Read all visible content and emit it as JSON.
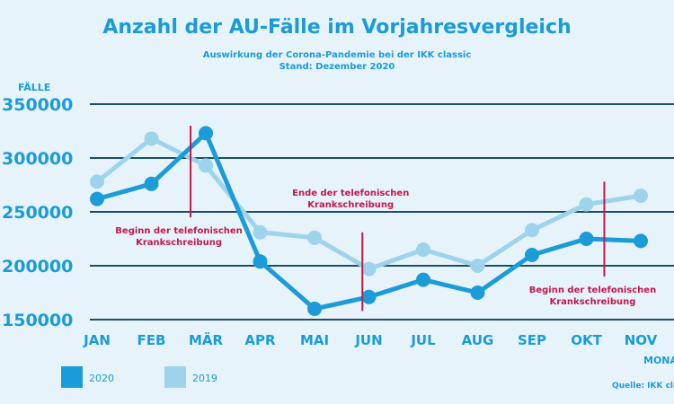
{
  "chart_data": {
    "type": "line",
    "title": "Anzahl der AU-Fälle im Vorjahresvergleich",
    "subtitle_line1": "Auswirkung der Corona-Pandemie bei der IKK classic",
    "subtitle_line2": "Stand: Dezember 2020",
    "ylabel": "FÄLLE",
    "xlabel": "MONAT",
    "source": "Quelle: IKK classic",
    "categories": [
      "JAN",
      "FEB",
      "MÄR",
      "APR",
      "MAI",
      "JUN",
      "JUL",
      "AUG",
      "SEP",
      "OKT",
      "NOV"
    ],
    "y_ticks": [
      350000,
      300000,
      250000,
      200000,
      150000
    ],
    "y_tick_labels": [
      "350000",
      "300000",
      "250000",
      "200000",
      "150000"
    ],
    "ylim": [
      150000,
      350000
    ],
    "grid": true,
    "legend_position": "bottom-left",
    "series": [
      {
        "name": "2019",
        "color": "#9dd4ec",
        "values": [
          278000,
          318000,
          293000,
          231000,
          226000,
          197000,
          215000,
          200000,
          233000,
          257000,
          265000
        ]
      },
      {
        "name": "2020",
        "color": "#1b9bd7",
        "values": [
          262000,
          276000,
          323000,
          204000,
          160000,
          171000,
          187000,
          175000,
          210000,
          225000,
          223000
        ]
      }
    ],
    "annotations": [
      {
        "month_index": 1.72,
        "line_from": 245000,
        "line_to": 330000,
        "text": [
          "Beginn der telefonischen",
          "Krankschreibung"
        ],
        "text_anchor_value": 230000
      },
      {
        "month_index": 4.88,
        "line_from": 158000,
        "line_to": 231000,
        "text": [
          "Ende der telefonischen",
          "Krankschreibung"
        ],
        "text_anchor_value": 265000
      },
      {
        "month_index": 9.33,
        "line_from": 190000,
        "line_to": 278000,
        "text": [
          "Beginn der telefonischen",
          "Krankschreibung"
        ],
        "text_anchor_value": 175000
      }
    ],
    "annotation_color": "#c2184a",
    "grid_color": "#1d4e63"
  }
}
